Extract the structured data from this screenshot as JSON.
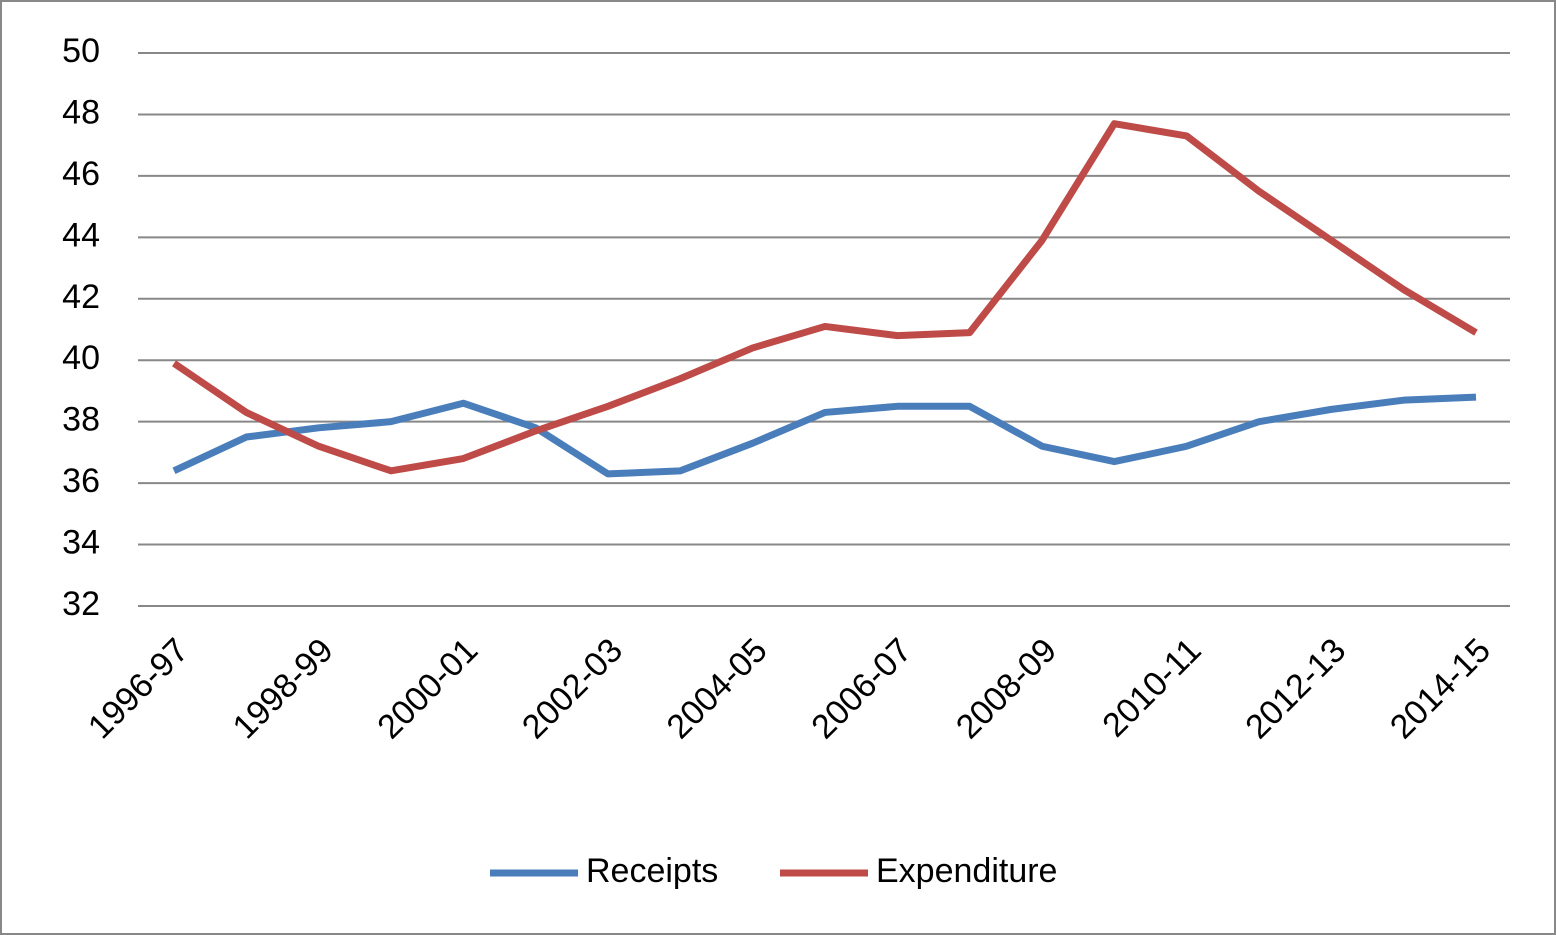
{
  "chart_data": {
    "type": "line",
    "categories": [
      "1996-97",
      null,
      "1998-99",
      null,
      "2000-01",
      null,
      "2002-03",
      null,
      "2004-05",
      null,
      "2006-07",
      null,
      "2008-09",
      null,
      "2010-11",
      null,
      "2012-13",
      null,
      "2014-15"
    ],
    "series": [
      {
        "name": "Receipts",
        "color": "#4a7ebb",
        "values": [
          36.4,
          37.5,
          37.8,
          38.0,
          38.6,
          37.8,
          36.3,
          36.4,
          37.3,
          38.3,
          38.5,
          38.5,
          37.2,
          36.7,
          37.2,
          38.0,
          38.4,
          38.7,
          38.8
        ]
      },
      {
        "name": "Expenditure",
        "color": "#be4b48",
        "values": [
          39.9,
          38.3,
          37.2,
          36.4,
          36.8,
          37.7,
          38.5,
          39.4,
          40.4,
          41.1,
          40.8,
          40.9,
          43.9,
          47.7,
          47.3,
          45.5,
          43.9,
          42.3,
          40.9
        ]
      }
    ],
    "ylim": [
      32,
      50
    ],
    "yticks": [
      32,
      34,
      36,
      38,
      40,
      42,
      44,
      46,
      48,
      50
    ],
    "grid": true,
    "legend": "bottom"
  }
}
